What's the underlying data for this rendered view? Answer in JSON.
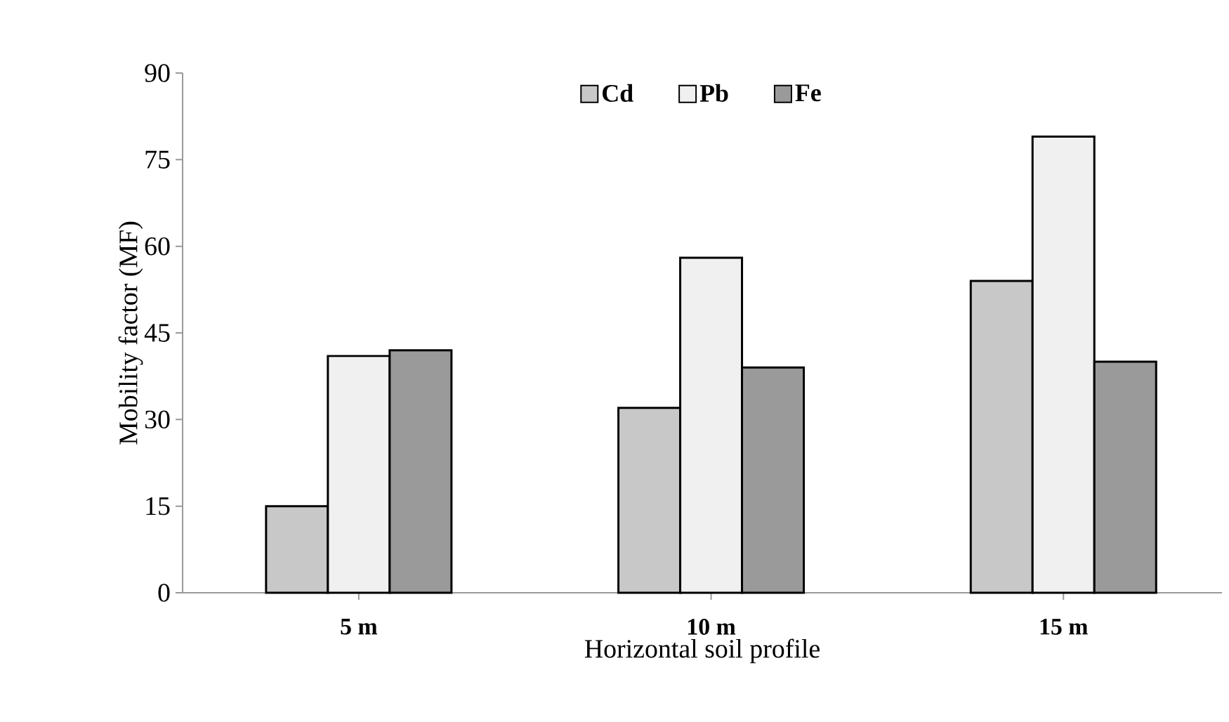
{
  "chart_data": {
    "type": "bar",
    "xlabel": "Horizontal soil profile",
    "ylabel": "Mobility factor (MF)",
    "categories": [
      "5 m",
      "10 m",
      "15 m"
    ],
    "series": [
      {
        "name": "Cd",
        "color": "#c8c8c8",
        "values": [
          15,
          32,
          54
        ]
      },
      {
        "name": "Pb",
        "color": "#f0f0f0",
        "values": [
          41,
          58,
          79
        ]
      },
      {
        "name": "Fe",
        "color": "#9a9a9a",
        "values": [
          42,
          39,
          40
        ]
      }
    ],
    "ylim": [
      0,
      90
    ],
    "yticks": [
      0,
      15,
      30,
      45,
      60,
      75,
      90
    ],
    "grid": false,
    "legend": "top"
  }
}
